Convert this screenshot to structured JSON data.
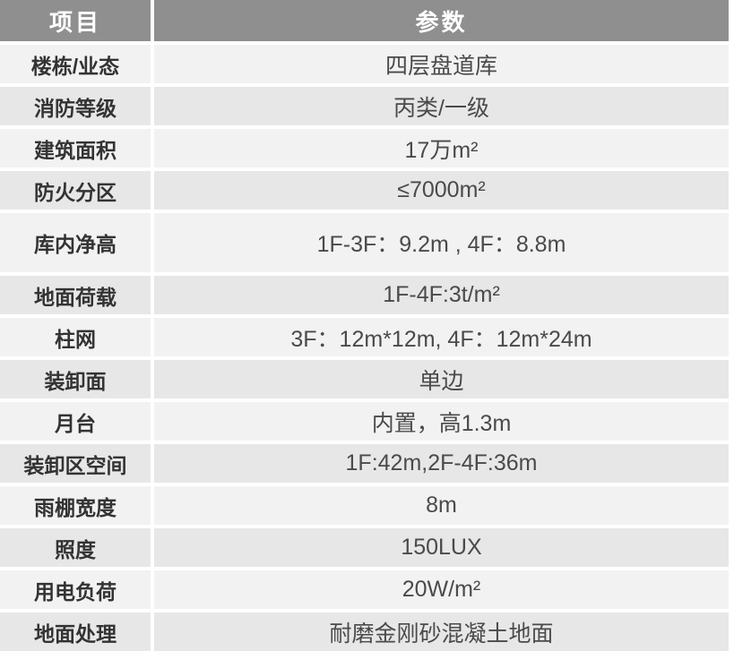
{
  "chart_data": {
    "type": "table",
    "columns": [
      "项目",
      "参数"
    ],
    "rows": [
      [
        "楼栋/业态",
        "四层盘道库"
      ],
      [
        "消防等级",
        "丙类/一级"
      ],
      [
        "建筑面积",
        "17万m²"
      ],
      [
        "防火分区",
        "≤7000m²"
      ],
      [
        "库内净高",
        "1F-3F：9.2m , 4F：8.8m"
      ],
      [
        "地面荷载",
        "1F-4F:3t/m²"
      ],
      [
        "柱网",
        "3F：12m*12m, 4F：12m*24m"
      ],
      [
        "装卸面",
        "单边"
      ],
      [
        "月台",
        "内置，高1.3m"
      ],
      [
        "装卸区空间",
        "1F:42m,2F-4F:36m"
      ],
      [
        "雨棚宽度",
        "8m"
      ],
      [
        "照度",
        "150LUX"
      ],
      [
        "用电负荷",
        "20W/m²"
      ],
      [
        "地面处理",
        "耐磨金刚砂混凝土地面"
      ]
    ],
    "layout": {
      "grid": "off",
      "header_row": true,
      "striped": true
    }
  },
  "colors": {
    "header_bg": "#8f8f8f",
    "header_text": "#ffffff",
    "row_light": "#f2f2f2",
    "row_dark": "#e7e7e7",
    "label_text": "#333333",
    "value_text": "#4a4a4a",
    "divider": "#ffffff"
  }
}
